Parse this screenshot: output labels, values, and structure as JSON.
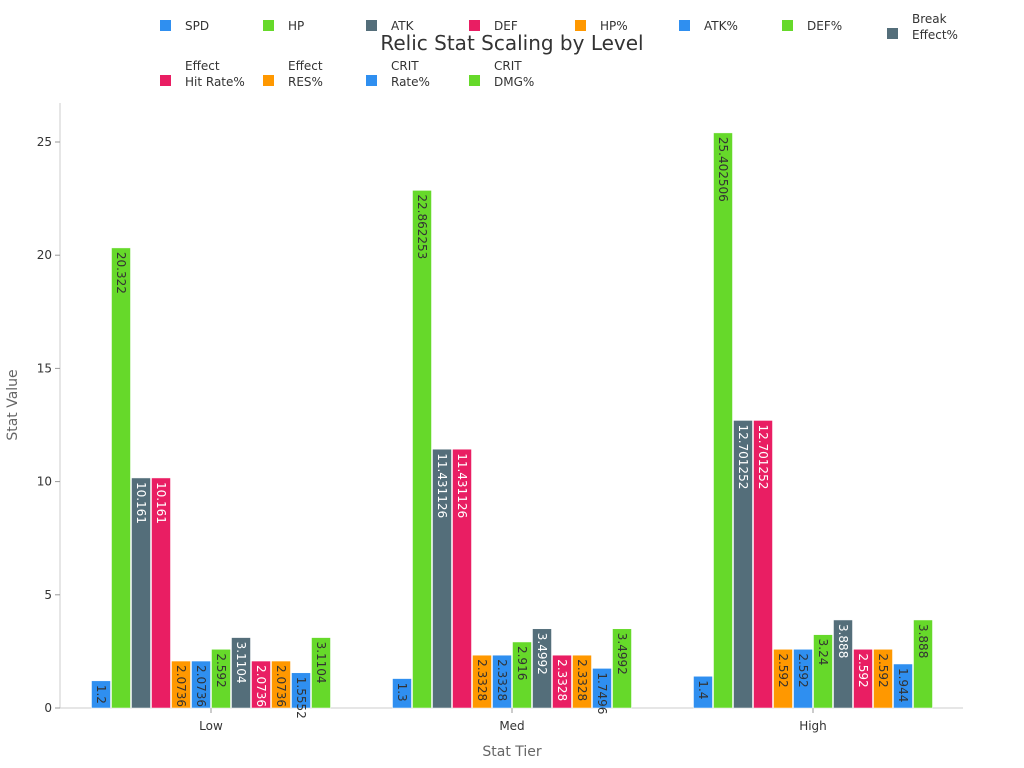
{
  "chart_data": {
    "type": "bar",
    "title": "Relic Stat Scaling by Level",
    "xlabel": "Stat Tier",
    "ylabel": "Stat Value",
    "categories": [
      "Low",
      "Med",
      "High"
    ],
    "ylim": [
      0,
      26.7
    ],
    "yticks": [
      0,
      5,
      10,
      15,
      20,
      25
    ],
    "grid": false,
    "legend_placement": "top",
    "series": [
      {
        "name": "SPD",
        "color": "#2f8ff0",
        "values": [
          1.2,
          1.3,
          1.4
        ]
      },
      {
        "name": "HP",
        "color": "#66d92a",
        "values": [
          20.322,
          22.862253,
          25.402506
        ]
      },
      {
        "name": "ATK",
        "color": "#546e7a",
        "values": [
          10.161,
          11.431126,
          12.701252
        ]
      },
      {
        "name": "DEF",
        "color": "#e91e63",
        "values": [
          10.161,
          11.431126,
          12.701252
        ]
      },
      {
        "name": "HP%",
        "color": "#ff9800",
        "values": [
          2.0736,
          2.3328,
          2.592
        ]
      },
      {
        "name": "ATK%",
        "color": "#2f8ff0",
        "values": [
          2.0736,
          2.3328,
          2.592
        ]
      },
      {
        "name": "DEF%",
        "color": "#66d92a",
        "values": [
          2.592,
          2.916,
          3.24
        ]
      },
      {
        "name": "Break Effect%",
        "color": "#546e7a",
        "values": [
          3.1104,
          3.4992,
          3.888
        ]
      },
      {
        "name": "Effect Hit Rate%",
        "color": "#e91e63",
        "values": [
          2.0736,
          2.3328,
          2.592
        ]
      },
      {
        "name": "Effect RES%",
        "color": "#ff9800",
        "values": [
          2.0736,
          2.3328,
          2.592
        ]
      },
      {
        "name": "CRIT Rate%",
        "color": "#2f8ff0",
        "values": [
          1.5552,
          1.7496,
          1.944
        ]
      },
      {
        "name": "CRIT DMG%",
        "color": "#66d92a",
        "values": [
          3.1104,
          3.4992,
          3.888
        ]
      }
    ]
  }
}
